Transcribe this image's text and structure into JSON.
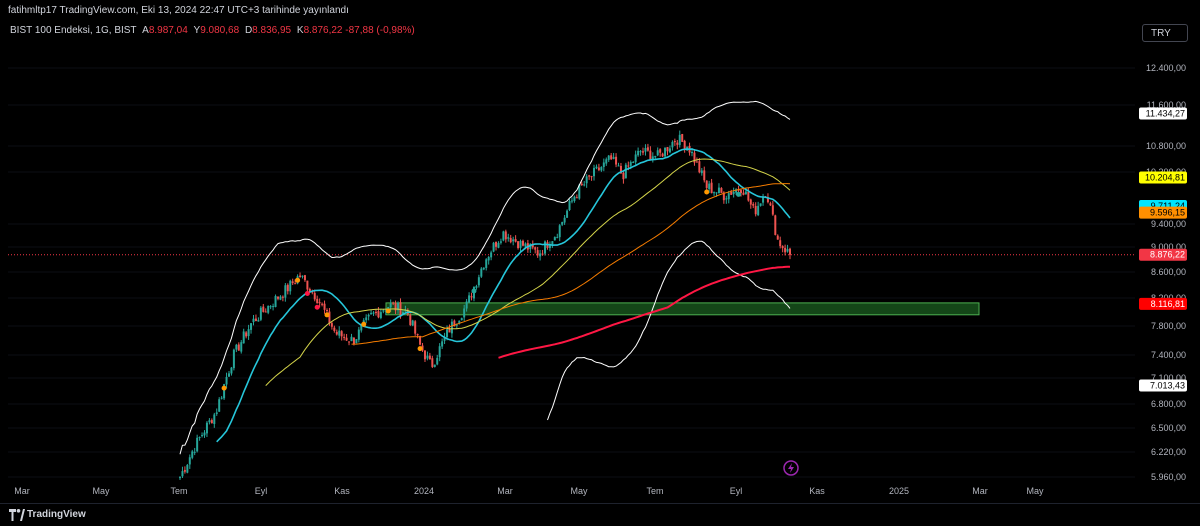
{
  "header": {
    "publish_text": "fatihmltp17 TradingView.com, Eki 13, 2024 22:47 UTC+3 tarihinde yayınlandı"
  },
  "legend": {
    "symbol": "BIST 100 Endeksi, 1G, BIST",
    "open_label": "A",
    "open_value": "8.987,04",
    "high_label": "Y",
    "high_value": "9.080,68",
    "low_label": "D",
    "low_value": "8.836,95",
    "close_label": "K",
    "close_value": "8.876,22",
    "change_value": "-87,88 (-0,98%)"
  },
  "currency_button": "TRY",
  "footer": {
    "brand": "TradingView",
    "bolt_icon": "lightning-icon"
  },
  "colors": {
    "bull": "#26a69a",
    "bear": "#ef5350",
    "ma_white": "#ffffff",
    "ma_cyan": "#26c6da",
    "ma_yellow": "#d4d44a",
    "ma_orange": "#f57c00",
    "ma_red": "#ff1744",
    "zone": "#1b5e20"
  },
  "chart_data": {
    "type": "candlestick",
    "x_axis_labels": [
      "Mar",
      "May",
      "Tem",
      "Eyl",
      "Kas",
      "2024",
      "Mar",
      "May",
      "Tem",
      "Eyl",
      "Kas",
      "2025",
      "Mar",
      "May"
    ],
    "y_ticks": [
      12400,
      11600,
      10800,
      10300,
      9400,
      9000,
      8600,
      8200,
      7800,
      7400,
      7100,
      6800,
      6500,
      6220,
      5960
    ],
    "y_tick_labels": [
      "12.400,00",
      "11.600,00",
      "10.800,00",
      "10.300,00",
      "9.400,00",
      "9.000,00",
      "8.600,00",
      "8.200,00",
      "7.800,00",
      "7.400,00",
      "7.100,00",
      "6.800,00",
      "6.500,00",
      "6.220,00",
      "5.960,00"
    ],
    "price_badges": [
      {
        "value": 11434.27,
        "label": "11.434,27",
        "bg": "#ffffff",
        "fg": "#000000"
      },
      {
        "value": 10204.81,
        "label": "10.204,81",
        "bg": "#ffff00",
        "fg": "#000000"
      },
      {
        "value": 9711.24,
        "label": "9.711,24",
        "bg": "#00e5ff",
        "fg": "#000000"
      },
      {
        "value": 9596.15,
        "label": "9.596,15",
        "bg": "#ff8f00",
        "fg": "#000000"
      },
      {
        "value": 8876.22,
        "label": "8.876,22",
        "bg": "#f23645",
        "fg": "#ffffff"
      },
      {
        "value": 8116.81,
        "label": "8.116,81",
        "bg": "#ff0000",
        "fg": "#ffffff"
      },
      {
        "value": 7013.43,
        "label": "7.013,43",
        "bg": "#ffffff",
        "fg": "#000000"
      }
    ],
    "last_price": 8876.22,
    "support_zone": {
      "low": 7960,
      "high": 8130
    },
    "ohlc_summary": {
      "open": 8987.04,
      "high": 9080.68,
      "low": 8836.95,
      "close": 8876.22,
      "change": -87.88,
      "change_pct": -0.98
    },
    "price_path": [
      [
        0,
        5960
      ],
      [
        3,
        6350
      ],
      [
        6,
        6700
      ],
      [
        9,
        7400
      ],
      [
        12,
        7850
      ],
      [
        15,
        8100
      ],
      [
        18,
        8350
      ],
      [
        20,
        8550
      ],
      [
        23,
        8200
      ],
      [
        26,
        7700
      ],
      [
        29,
        7600
      ],
      [
        32,
        7950
      ],
      [
        35,
        8100
      ],
      [
        38,
        8000
      ],
      [
        40,
        7550
      ],
      [
        42,
        7250
      ],
      [
        45,
        7750
      ],
      [
        48,
        8100
      ],
      [
        51,
        8800
      ],
      [
        54,
        9250
      ],
      [
        57,
        9050
      ],
      [
        60,
        8900
      ],
      [
        63,
        9250
      ],
      [
        66,
        9900
      ],
      [
        69,
        10250
      ],
      [
        72,
        10550
      ],
      [
        74,
        10250
      ],
      [
        77,
        10700
      ],
      [
        80,
        10600
      ],
      [
        83,
        10950
      ],
      [
        85,
        10800
      ],
      [
        88,
        10050
      ],
      [
        91,
        9900
      ],
      [
        94,
        10050
      ],
      [
        96,
        9600
      ],
      [
        98,
        10000
      ],
      [
        100,
        9100
      ],
      [
        102,
        8876
      ]
    ]
  }
}
